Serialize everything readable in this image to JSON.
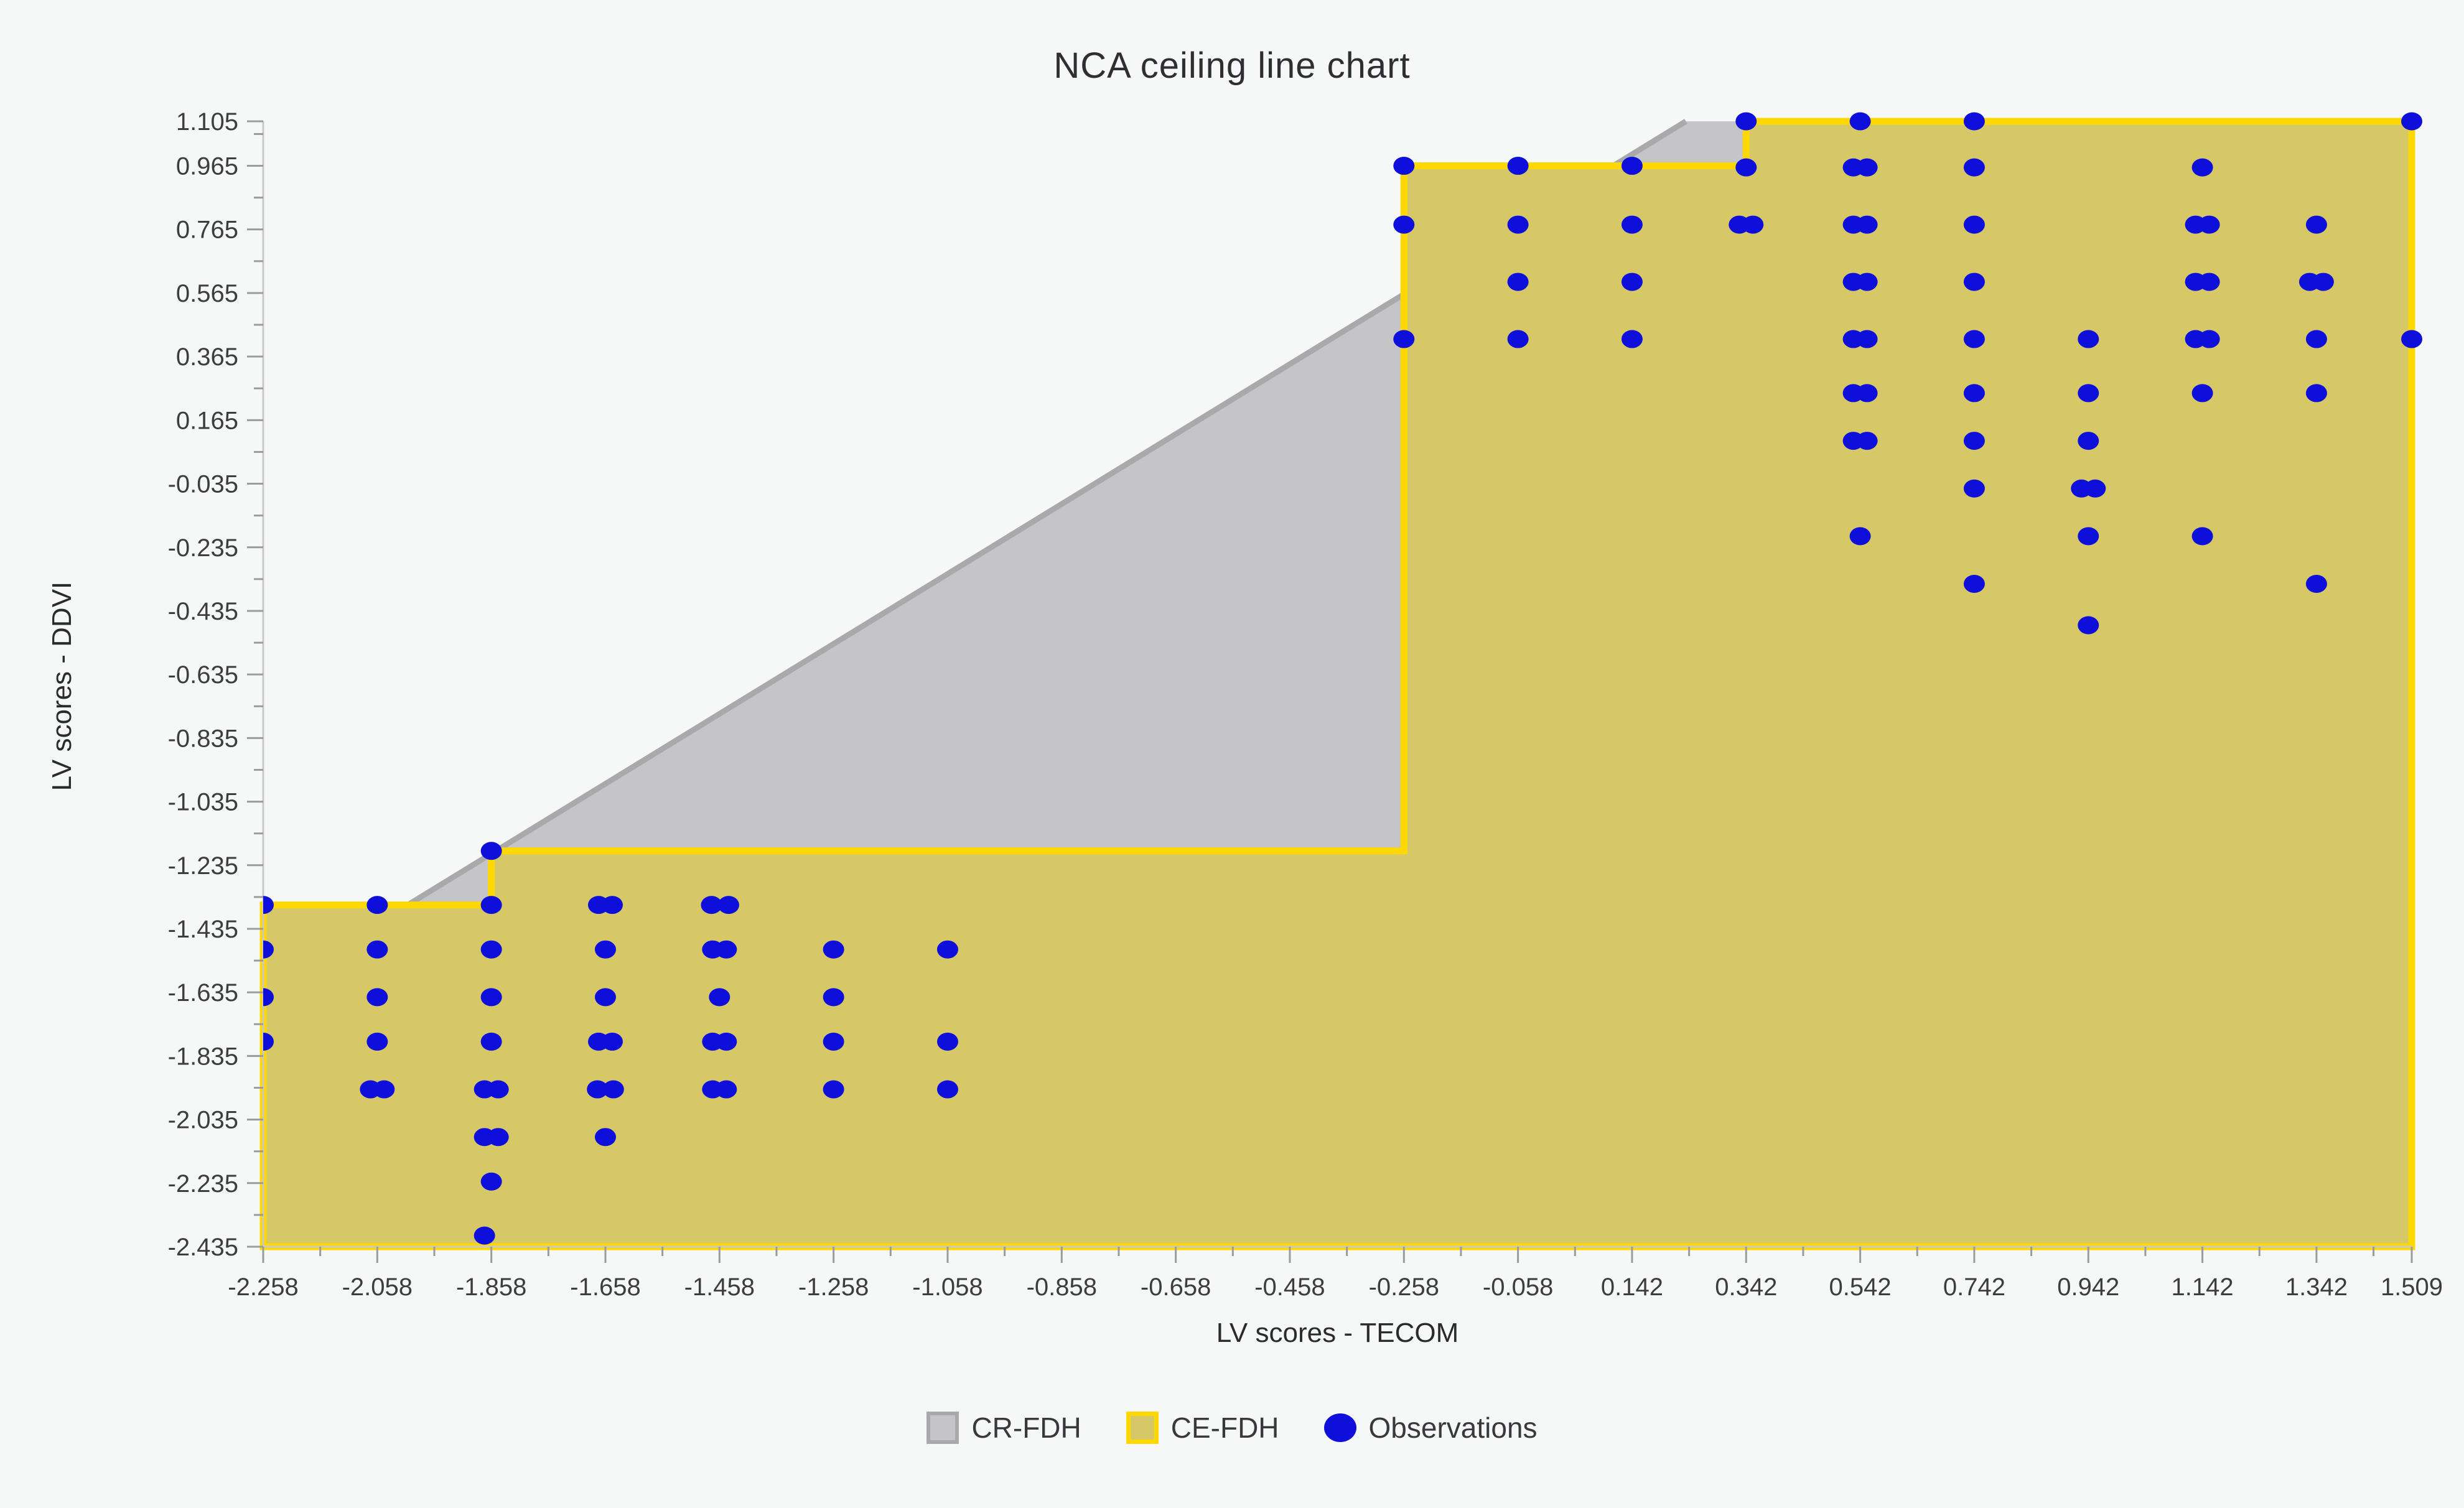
{
  "title": "NCA ceiling line chart",
  "legend": {
    "items": [
      {
        "label": "CR-FDH",
        "swatch": "gray-square-icon",
        "color": "#c5c5c7",
        "border": "#a9a9ab"
      },
      {
        "label": "CE-FDH",
        "swatch": "yellow-square-icon",
        "color": "#d6c767",
        "border": "#ffd802"
      },
      {
        "label": "Observations",
        "swatch": "blue-dot-icon",
        "color": "#0f0fdc",
        "border": "#0f0fdc"
      }
    ]
  },
  "colors": {
    "background": "#f6f7f7",
    "cr_fill": "#c5c5c7",
    "cr_edge": "#a9a9ab",
    "ce_fill": "#d6c767",
    "ce_edge": "#ffd802",
    "dot": "#0f0fdc",
    "axis_line": "#c9c9c9",
    "tick": "#9b9b9b",
    "tick_label": "#3d3d3d"
  },
  "chart_data": {
    "type": "scatter",
    "title": "NCA ceiling line chart",
    "xlabel": "LV scores - TECOM",
    "ylabel": "LV scores - DDVI",
    "xlim": [
      -2.258,
      1.509
    ],
    "ylim": [
      -2.435,
      1.105
    ],
    "grid": false,
    "legend_position": "bottom",
    "x_major_ticks": [
      -2.258,
      -2.058,
      -1.858,
      -1.658,
      -1.458,
      -1.258,
      -1.058,
      -0.858,
      -0.658,
      -0.458,
      -0.258,
      -0.058,
      0.142,
      0.342,
      0.542,
      0.742,
      0.942,
      1.142,
      1.342,
      1.509
    ],
    "y_major_ticks": [
      -2.435,
      -2.235,
      -2.035,
      -1.835,
      -1.635,
      -1.435,
      -1.235,
      -1.035,
      -0.835,
      -0.635,
      -0.435,
      -0.235,
      -0.035,
      0.165,
      0.365,
      0.565,
      0.765,
      0.965,
      1.105
    ],
    "series": [
      {
        "name": "CE-FDH",
        "kind": "step-ceiling-region",
        "step_points": [
          [
            -2.258,
            -1.36
          ],
          [
            -1.858,
            -1.36
          ],
          [
            -1.858,
            -1.19
          ],
          [
            -0.258,
            -1.19
          ],
          [
            -0.258,
            0.965
          ],
          [
            0.342,
            0.965
          ],
          [
            0.342,
            1.105
          ],
          [
            1.509,
            1.105
          ]
        ]
      },
      {
        "name": "CR-FDH",
        "kind": "line-ceiling-region",
        "slope": 1.1,
        "intercept": 0.845
      },
      {
        "name": "Observations",
        "kind": "scatter",
        "points": [
          [
            -2.258,
            -1.36
          ],
          [
            -2.258,
            -1.5
          ],
          [
            -2.258,
            -1.65
          ],
          [
            -2.258,
            -1.79
          ],
          [
            -2.058,
            -1.36
          ],
          [
            -2.058,
            -1.5
          ],
          [
            -2.058,
            -1.65
          ],
          [
            -2.058,
            -1.79
          ],
          [
            -2.07,
            -1.94
          ],
          [
            -2.046,
            -1.94
          ],
          [
            -1.858,
            -1.19
          ],
          [
            -1.858,
            -1.36
          ],
          [
            -1.858,
            -1.5
          ],
          [
            -1.858,
            -1.65
          ],
          [
            -1.858,
            -1.79
          ],
          [
            -1.87,
            -1.94
          ],
          [
            -1.846,
            -1.94
          ],
          [
            -1.87,
            -2.09
          ],
          [
            -1.846,
            -2.09
          ],
          [
            -1.858,
            -2.23
          ],
          [
            -1.87,
            -2.4
          ],
          [
            -1.67,
            -1.36
          ],
          [
            -1.646,
            -1.36
          ],
          [
            -1.658,
            -1.5
          ],
          [
            -1.658,
            -1.65
          ],
          [
            -1.67,
            -1.79
          ],
          [
            -1.646,
            -1.79
          ],
          [
            -1.672,
            -1.94
          ],
          [
            -1.644,
            -1.94
          ],
          [
            -1.658,
            -2.09
          ],
          [
            -1.472,
            -1.36
          ],
          [
            -1.442,
            -1.36
          ],
          [
            -1.47,
            -1.5
          ],
          [
            -1.446,
            -1.5
          ],
          [
            -1.458,
            -1.65
          ],
          [
            -1.47,
            -1.79
          ],
          [
            -1.446,
            -1.79
          ],
          [
            -1.47,
            -1.94
          ],
          [
            -1.446,
            -1.94
          ],
          [
            -1.258,
            -1.5
          ],
          [
            -1.258,
            -1.65
          ],
          [
            -1.258,
            -1.79
          ],
          [
            -1.258,
            -1.94
          ],
          [
            -1.058,
            -1.5
          ],
          [
            -1.058,
            -1.79
          ],
          [
            -1.058,
            -1.94
          ],
          [
            0.342,
            1.105
          ],
          [
            0.542,
            1.105
          ],
          [
            0.742,
            1.105
          ],
          [
            1.509,
            1.105
          ],
          [
            -0.258,
            0.965
          ],
          [
            -0.058,
            0.965
          ],
          [
            0.142,
            0.965
          ],
          [
            0.342,
            0.96
          ],
          [
            0.53,
            0.96
          ],
          [
            0.554,
            0.96
          ],
          [
            0.742,
            0.96
          ],
          [
            1.142,
            0.96
          ],
          [
            -0.258,
            0.78
          ],
          [
            -0.058,
            0.78
          ],
          [
            0.142,
            0.78
          ],
          [
            0.33,
            0.78
          ],
          [
            0.354,
            0.78
          ],
          [
            0.53,
            0.78
          ],
          [
            0.554,
            0.78
          ],
          [
            0.742,
            0.78
          ],
          [
            1.13,
            0.78
          ],
          [
            1.154,
            0.78
          ],
          [
            1.342,
            0.78
          ],
          [
            -0.058,
            0.6
          ],
          [
            0.142,
            0.6
          ],
          [
            0.53,
            0.6
          ],
          [
            0.554,
            0.6
          ],
          [
            0.742,
            0.6
          ],
          [
            1.13,
            0.6
          ],
          [
            1.154,
            0.6
          ],
          [
            1.33,
            0.6
          ],
          [
            1.354,
            0.6
          ],
          [
            -0.258,
            0.42
          ],
          [
            -0.058,
            0.42
          ],
          [
            0.142,
            0.42
          ],
          [
            0.53,
            0.42
          ],
          [
            0.554,
            0.42
          ],
          [
            0.742,
            0.42
          ],
          [
            0.942,
            0.42
          ],
          [
            1.13,
            0.42
          ],
          [
            1.154,
            0.42
          ],
          [
            1.342,
            0.42
          ],
          [
            1.509,
            0.42
          ],
          [
            0.53,
            0.25
          ],
          [
            0.554,
            0.25
          ],
          [
            0.742,
            0.25
          ],
          [
            0.942,
            0.25
          ],
          [
            1.142,
            0.25
          ],
          [
            1.342,
            0.25
          ],
          [
            0.53,
            0.1
          ],
          [
            0.554,
            0.1
          ],
          [
            0.742,
            0.1
          ],
          [
            0.942,
            0.1
          ],
          [
            0.742,
            -0.05
          ],
          [
            0.93,
            -0.05
          ],
          [
            0.954,
            -0.05
          ],
          [
            0.542,
            -0.2
          ],
          [
            0.942,
            -0.2
          ],
          [
            1.142,
            -0.2
          ],
          [
            0.742,
            -0.35
          ],
          [
            1.342,
            -0.35
          ],
          [
            0.942,
            -0.48
          ]
        ]
      }
    ]
  }
}
